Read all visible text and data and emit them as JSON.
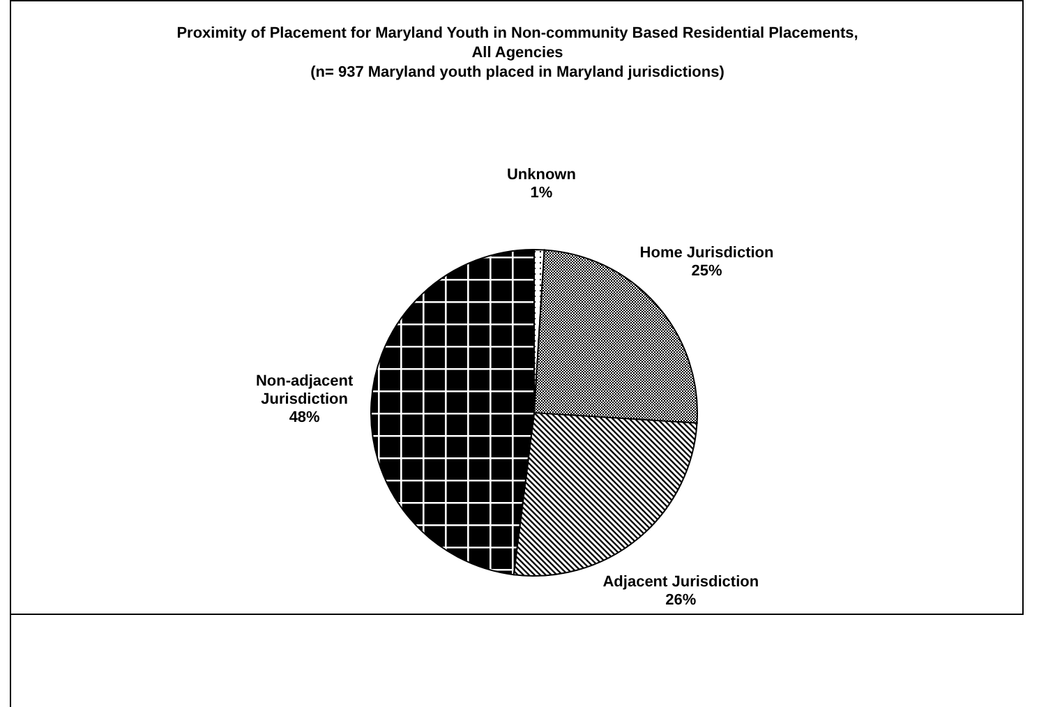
{
  "chart_data": {
    "type": "pie",
    "title": "Proximity of Placement for Maryland Youth in Non-community Based Residential Placements, All Agencies",
    "subtitle": "(n= 937 Maryland youth placed in Maryland jurisdictions)",
    "categories": [
      "Unknown",
      "Home Jurisdiction",
      "Adjacent Jurisdiction",
      "Non-adjacent Jurisdiction"
    ],
    "values": [
      1,
      25,
      26,
      48
    ],
    "value_labels": [
      "1%",
      "25%",
      "26%",
      "48%"
    ]
  }
}
